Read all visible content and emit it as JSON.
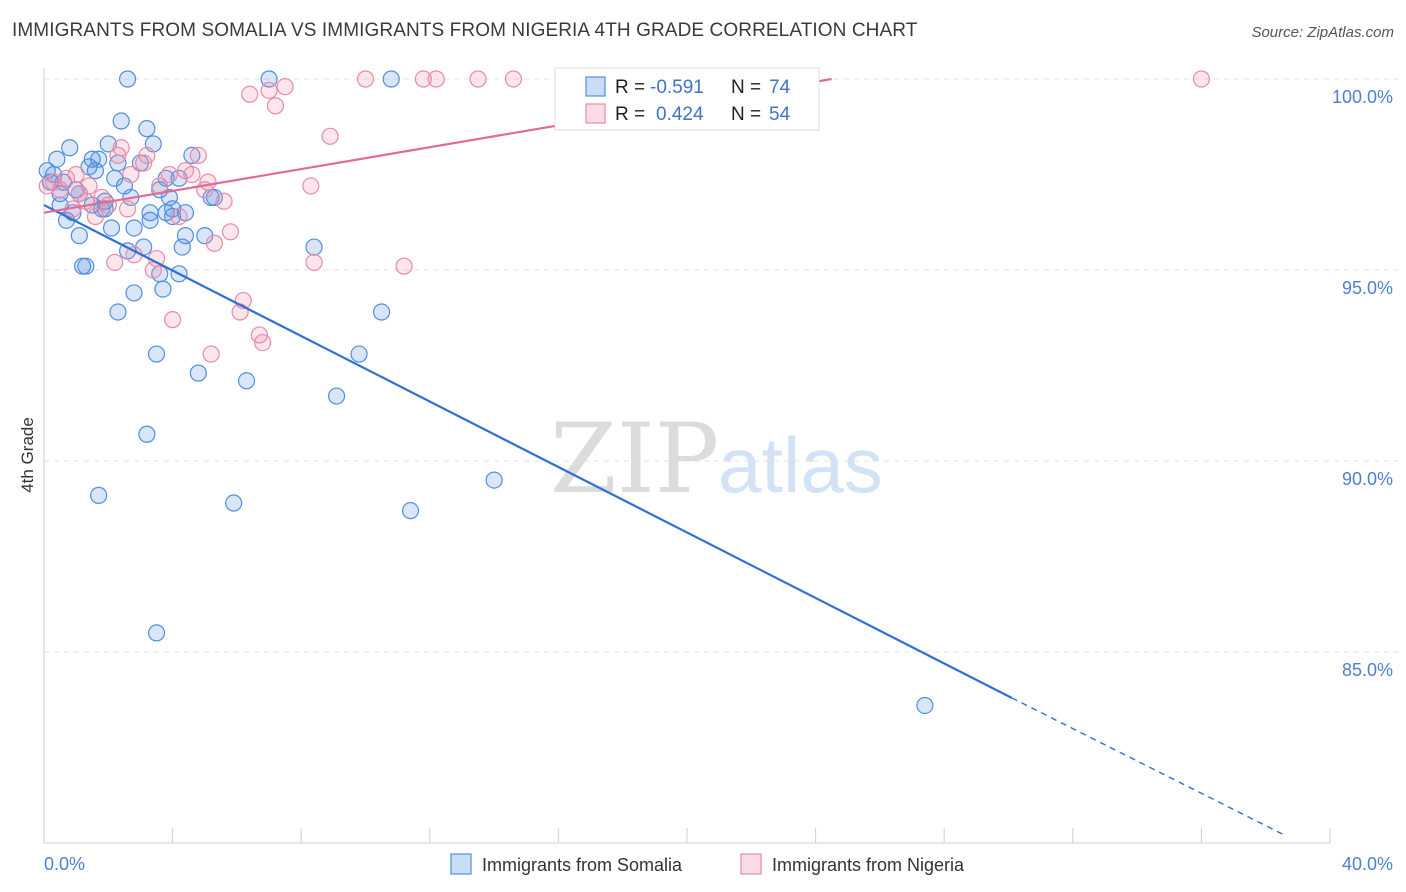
{
  "colors": {
    "somalia": "#4f8fe0",
    "somalia_fill": "rgba(79,143,224,0.22)",
    "somalia_line": "#2f6fd6",
    "nigeria": "#e98aa9",
    "nigeria_fill": "rgba(240,140,170,0.22)",
    "nigeria_line": "#e36a93",
    "grid": "#e3e3e3",
    "accent_text": "#3f73c9"
  },
  "chart_data": {
    "type": "scatter",
    "title": "IMMIGRANTS FROM SOMALIA VS IMMIGRANTS FROM NIGERIA 4TH GRADE CORRELATION CHART",
    "source": "Source: ZipAtlas.com",
    "xlabel": "",
    "ylabel": "4th Grade",
    "xlim": [
      0,
      40
    ],
    "ylim": [
      80.5,
      100.7
    ],
    "x_tick_labels": [
      "0.0%",
      "40.0%"
    ],
    "y_ticks": [
      85,
      90,
      95,
      100
    ],
    "y_tick_labels": [
      "85.0%",
      "90.0%",
      "95.0%",
      "100.0%"
    ],
    "watermark": {
      "zip": "ZIP",
      "atlas": "atlas"
    },
    "legend": {
      "rows": [
        {
          "r_label": "R =",
          "r_value": "-0.591",
          "n_label": "N =",
          "n_value": "74"
        },
        {
          "r_label": "R =",
          "r_value": "0.424",
          "n_label": "N =",
          "n_value": "54"
        }
      ]
    },
    "series": [
      {
        "name": "Immigrants from Somalia",
        "r": -0.591,
        "n": 74,
        "trend": {
          "x0": 0,
          "y0": 96.7,
          "x1": 30.1,
          "y1": 83.8,
          "dash_to_x": 38.6,
          "dash_to_y": 80.2
        },
        "points": [
          [
            0.1,
            97.6
          ],
          [
            0.2,
            97.3
          ],
          [
            0.3,
            97.5
          ],
          [
            0.4,
            97.9
          ],
          [
            0.5,
            97.0
          ],
          [
            0.5,
            96.7
          ],
          [
            0.6,
            97.3
          ],
          [
            0.7,
            96.3
          ],
          [
            0.8,
            98.2
          ],
          [
            0.9,
            96.5
          ],
          [
            1.0,
            97.1
          ],
          [
            1.1,
            97.0
          ],
          [
            1.1,
            95.9
          ],
          [
            1.2,
            95.1
          ],
          [
            1.3,
            95.1
          ],
          [
            1.4,
            97.7
          ],
          [
            1.5,
            96.7
          ],
          [
            1.5,
            97.9
          ],
          [
            1.6,
            97.6
          ],
          [
            1.7,
            97.9
          ],
          [
            1.8,
            96.6
          ],
          [
            1.9,
            96.8
          ],
          [
            1.9,
            96.6
          ],
          [
            2.0,
            98.3
          ],
          [
            2.1,
            96.1
          ],
          [
            2.2,
            97.4
          ],
          [
            2.3,
            97.8
          ],
          [
            2.3,
            93.9
          ],
          [
            2.4,
            98.9
          ],
          [
            2.5,
            97.2
          ],
          [
            2.6,
            95.5
          ],
          [
            2.7,
            96.9
          ],
          [
            2.8,
            96.1
          ],
          [
            2.8,
            94.4
          ],
          [
            3.0,
            97.8
          ],
          [
            3.1,
            95.6
          ],
          [
            3.2,
            98.7
          ],
          [
            3.3,
            96.3
          ],
          [
            3.3,
            96.5
          ],
          [
            3.4,
            98.3
          ],
          [
            3.5,
            92.8
          ],
          [
            3.6,
            97.1
          ],
          [
            3.6,
            94.9
          ],
          [
            3.7,
            94.5
          ],
          [
            3.8,
            97.4
          ],
          [
            3.8,
            96.5
          ],
          [
            3.9,
            96.9
          ],
          [
            4.0,
            96.6
          ],
          [
            4.0,
            96.4
          ],
          [
            4.2,
            97.4
          ],
          [
            4.2,
            94.9
          ],
          [
            4.3,
            95.6
          ],
          [
            4.4,
            96.5
          ],
          [
            4.4,
            95.9
          ],
          [
            4.6,
            98.0
          ],
          [
            4.8,
            92.3
          ],
          [
            5.0,
            95.9
          ],
          [
            5.2,
            96.9
          ],
          [
            5.3,
            96.9
          ],
          [
            6.3,
            92.1
          ],
          [
            7.0,
            100.0
          ],
          [
            8.4,
            95.6
          ],
          [
            9.1,
            91.7
          ],
          [
            9.8,
            92.8
          ],
          [
            10.5,
            93.9
          ],
          [
            10.8,
            100.0
          ],
          [
            11.4,
            88.7
          ],
          [
            14.0,
            89.5
          ],
          [
            2.6,
            100.0
          ],
          [
            3.2,
            90.7
          ],
          [
            3.5,
            85.5
          ],
          [
            1.7,
            89.1
          ],
          [
            5.9,
            88.9
          ],
          [
            27.4,
            83.6
          ]
        ]
      },
      {
        "name": "Immigrants from Nigeria",
        "r": 0.424,
        "n": 54,
        "trend": {
          "x0": 0,
          "y0": 96.5,
          "x1": 24.5,
          "y1": 100.0
        },
        "points": [
          [
            0.1,
            97.2
          ],
          [
            0.3,
            97.3
          ],
          [
            0.5,
            97.1
          ],
          [
            0.7,
            97.4
          ],
          [
            0.9,
            96.6
          ],
          [
            1.0,
            97.5
          ],
          [
            1.1,
            97.0
          ],
          [
            1.3,
            96.8
          ],
          [
            1.4,
            97.2
          ],
          [
            1.6,
            96.4
          ],
          [
            1.8,
            96.9
          ],
          [
            2.0,
            96.7
          ],
          [
            2.2,
            95.2
          ],
          [
            2.3,
            98.0
          ],
          [
            2.4,
            98.2
          ],
          [
            2.6,
            96.6
          ],
          [
            2.7,
            97.5
          ],
          [
            2.8,
            95.4
          ],
          [
            3.1,
            97.8
          ],
          [
            3.2,
            98.0
          ],
          [
            3.4,
            95.0
          ],
          [
            3.5,
            95.3
          ],
          [
            3.6,
            97.2
          ],
          [
            3.9,
            97.5
          ],
          [
            4.0,
            93.7
          ],
          [
            4.2,
            96.4
          ],
          [
            4.4,
            97.6
          ],
          [
            4.6,
            97.5
          ],
          [
            4.8,
            98.0
          ],
          [
            5.0,
            97.1
          ],
          [
            5.1,
            97.3
          ],
          [
            5.2,
            92.8
          ],
          [
            5.3,
            95.7
          ],
          [
            5.6,
            96.8
          ],
          [
            5.8,
            96.0
          ],
          [
            6.1,
            93.9
          ],
          [
            6.2,
            94.2
          ],
          [
            6.4,
            99.6
          ],
          [
            6.7,
            93.3
          ],
          [
            6.8,
            93.1
          ],
          [
            7.0,
            99.7
          ],
          [
            7.2,
            99.3
          ],
          [
            7.5,
            99.8
          ],
          [
            8.3,
            97.2
          ],
          [
            8.4,
            95.2
          ],
          [
            8.9,
            98.5
          ],
          [
            10.0,
            100.0
          ],
          [
            11.2,
            95.1
          ],
          [
            11.8,
            100.0
          ],
          [
            12.2,
            100.0
          ],
          [
            13.5,
            100.0
          ],
          [
            14.6,
            100.0
          ],
          [
            16.3,
            100.0
          ],
          [
            36.0,
            100.0
          ]
        ]
      }
    ]
  }
}
